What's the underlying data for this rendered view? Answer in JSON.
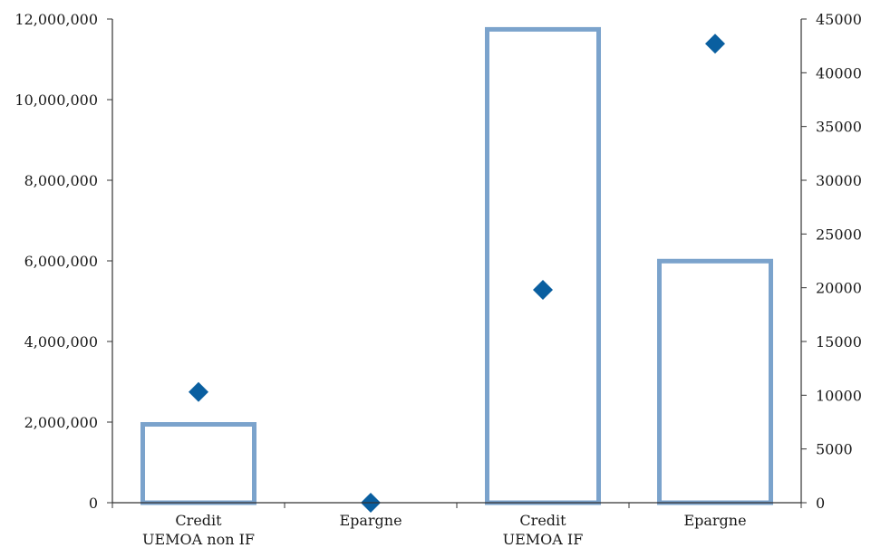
{
  "chart_data": {
    "type": "bar",
    "categories": [
      [
        "Credit",
        "UEMOA non IF"
      ],
      [
        "Epargne"
      ],
      [
        "Credit",
        "UEMOA IF"
      ],
      [
        "Epargne"
      ]
    ],
    "series": [
      {
        "type": "bar",
        "axis": "left",
        "values": [
          2000000,
          0,
          11800000,
          6050000
        ]
      },
      {
        "type": "scatter",
        "axis": "right",
        "marker": "diamond",
        "values": [
          10300,
          0,
          19800,
          42700
        ]
      }
    ],
    "left_axis": {
      "ylim": [
        0,
        12000000
      ],
      "ticks": [
        "0",
        "2,000,000",
        "4,000,000",
        "6,000,000",
        "8,000,000",
        "10,000,000",
        "12,000,000"
      ]
    },
    "right_axis": {
      "ylim": [
        0,
        45000
      ],
      "ticks": [
        "0",
        "5000",
        "10000",
        "15000",
        "20000",
        "25000",
        "30000",
        "35000",
        "40000",
        "45000"
      ]
    },
    "colors": {
      "bar_outline": "#7ba3cc",
      "marker": "#0a5fa0",
      "axis": "#333333"
    },
    "grid": false,
    "legend": "none"
  }
}
